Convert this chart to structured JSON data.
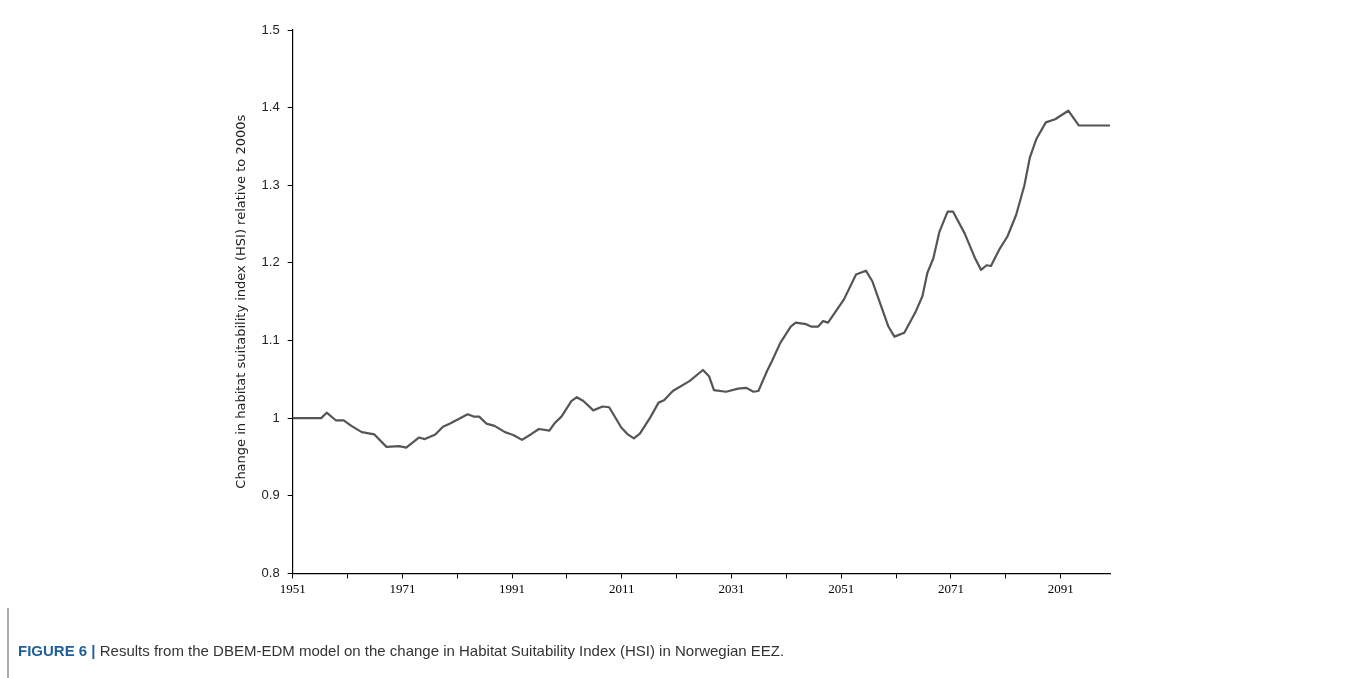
{
  "chart_data": {
    "type": "line",
    "ylabel": "Change in habitat suitability index (HSI) relative to 2000s",
    "annotations": [
      "FIGURE 6 | Results from the DBEM-EDM model on the change in Habitat Suitability Index (HSI) in Norwegian EEZ."
    ],
    "xlim": [
      1951,
      2100
    ],
    "xticks": [
      1951,
      {
        "value": 1961,
        "label": null
      },
      1971,
      {
        "value": 1981,
        "label": null
      },
      1991,
      {
        "value": 2001,
        "label": null
      },
      2011,
      {
        "value": 2021,
        "label": null
      },
      2031,
      {
        "value": 2041,
        "label": null
      },
      2051,
      {
        "value": 2061,
        "label": null
      },
      2071,
      {
        "value": 2081,
        "label": null
      },
      2091
    ],
    "ylim": [
      0.8,
      1.5
    ],
    "yticks": [
      0.8,
      0.9,
      {
        "value": 1,
        "label": "1"
      },
      1.1,
      1.2,
      1.3,
      1.4,
      1.5
    ],
    "grid": false,
    "marker": "none",
    "series": [
      {
        "color": "#555555",
        "x": [
          1951,
          1956.2,
          1957.2,
          1958.9,
          1960.3,
          1961.7,
          1963.6,
          1965.9,
          1968.1,
          1970.4,
          1971.7,
          1974.0,
          1975.1,
          1977.0,
          1978.4,
          1979.7,
          1982.9,
          1984.0,
          1985.0,
          1986.3,
          1987.8,
          1989.7,
          1991.3,
          1992.8,
          1994.4,
          1995.9,
          1997.8,
          1998.7,
          2000.0,
          2001.8,
          2002.8,
          2004.0,
          2005.8,
          2007.5,
          2008.7,
          2010.9,
          2012.1,
          2013.2,
          2014.3,
          2016.2,
          2017.7,
          2018.7,
          2020.3,
          2023.4,
          2025.8,
          2026.9,
          2027.8,
          2030.0,
          2032.2,
          2033.7,
          2035.0,
          2035.9,
          2037.5,
          2038.4,
          2039.9,
          2041.8,
          2042.7,
          2044.6,
          2045.5,
          2046.8,
          2047.7,
          2048.6,
          2051.5,
          2053.7,
          2055.5,
          2056.7,
          2059.6,
          2060.7,
          2062.5,
          2064.5,
          2065.8,
          2066.7,
          2067.8,
          2068.9,
          2070.4,
          2071.4,
          2073.5,
          2075.4,
          2076.5,
          2077.5,
          2078.3,
          2079.8,
          2081.3,
          2082.9,
          2084.4,
          2085.4,
          2086.6,
          2088.3,
          2090.0,
          2092.4,
          2094.3,
          2100
        ],
        "values": [
          1.0,
          1.0,
          1.007,
          0.997,
          0.997,
          0.99,
          0.982,
          0.979,
          0.963,
          0.964,
          0.962,
          0.975,
          0.973,
          0.979,
          0.989,
          0.993,
          1.005,
          1.002,
          1.002,
          0.993,
          0.99,
          0.982,
          0.978,
          0.972,
          0.979,
          0.986,
          0.984,
          0.993,
          1.002,
          1.022,
          1.027,
          1.022,
          1.01,
          1.015,
          1.014,
          0.988,
          0.979,
          0.974,
          0.98,
          1.001,
          1.02,
          1.023,
          1.035,
          1.048,
          1.062,
          1.054,
          1.036,
          1.034,
          1.038,
          1.039,
          1.034,
          1.035,
          1.061,
          1.074,
          1.097,
          1.118,
          1.123,
          1.121,
          1.118,
          1.118,
          1.125,
          1.123,
          1.153,
          1.185,
          1.19,
          1.176,
          1.118,
          1.105,
          1.11,
          1.136,
          1.157,
          1.187,
          1.206,
          1.24,
          1.266,
          1.266,
          1.238,
          1.206,
          1.191,
          1.197,
          1.196,
          1.217,
          1.234,
          1.262,
          1.3,
          1.336,
          1.36,
          1.381,
          1.385,
          1.396,
          1.377,
          1.377
        ]
      }
    ]
  }
}
